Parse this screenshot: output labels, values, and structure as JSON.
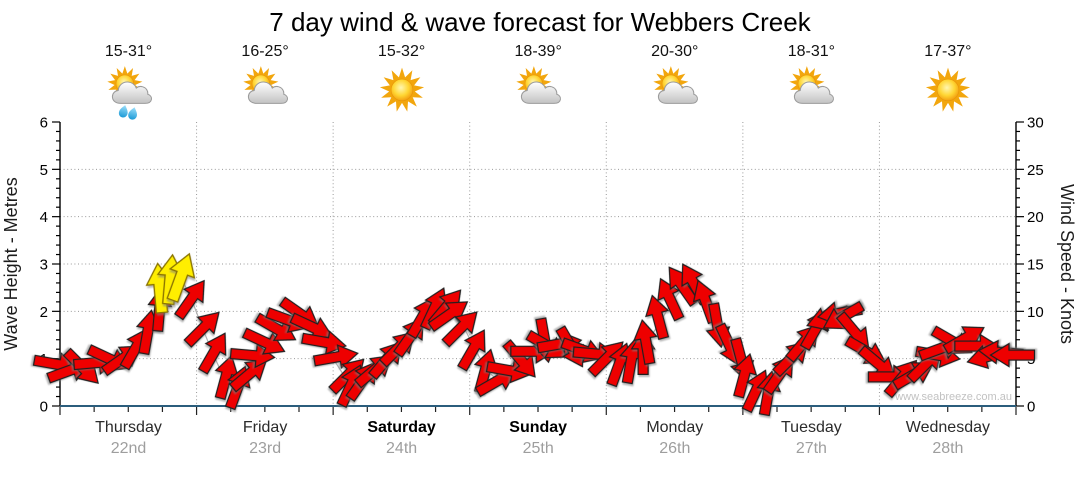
{
  "title": "7 day wind & wave forecast for Webbers Creek",
  "watermark": "www.seabreeze.com.au",
  "axes": {
    "left_label": "Wave Height - Metres",
    "right_label": "Wind Speed - Knots",
    "left_ticks": [
      0,
      1,
      2,
      3,
      4,
      5,
      6
    ],
    "right_ticks": [
      0,
      5,
      10,
      15,
      20,
      25,
      30
    ]
  },
  "days": [
    {
      "name": "Thursday",
      "date": "22nd",
      "temp": "15-31°",
      "icon": "sun-cloud-rain",
      "weekend": false
    },
    {
      "name": "Friday",
      "date": "23rd",
      "temp": "16-25°",
      "icon": "sun-cloud",
      "weekend": false
    },
    {
      "name": "Saturday",
      "date": "24th",
      "temp": "15-32°",
      "icon": "sun",
      "weekend": true
    },
    {
      "name": "Sunday",
      "date": "25th",
      "temp": "18-39°",
      "icon": "sun-cloud",
      "weekend": true
    },
    {
      "name": "Monday",
      "date": "26th",
      "temp": "20-30°",
      "icon": "sun-cloud",
      "weekend": false
    },
    {
      "name": "Tuesday",
      "date": "27th",
      "temp": "18-31°",
      "icon": "sun-cloud",
      "weekend": false
    },
    {
      "name": "Wednesday",
      "date": "28th",
      "temp": "17-37°",
      "icon": "sun",
      "weekend": false
    }
  ],
  "colors": {
    "arrow_red": "#ee0000",
    "arrow_red_stroke": "#1f1f1f",
    "arrow_yellow": "#ffee00",
    "arrow_yellow_stroke": "#8a7400",
    "gridline": "#9a9a9a",
    "axis": "#000000",
    "bottom_axis": "#2b5d7c",
    "trend_line": "#b0b0b0",
    "date_text": "#9e9e9e",
    "rain_drop": "#29a8e0",
    "sun": "#f2a60d",
    "cloud_edge": "#9b9b9b"
  },
  "chart_data": {
    "type": "line",
    "subtype": "wind-direction-arrows",
    "title": "7 day wind & wave forecast for Webbers Creek",
    "xlabel_days": [
      "Thursday 22nd",
      "Friday 23rd",
      "Saturday 24th",
      "Sunday 25th",
      "Monday 26th",
      "Tuesday 27th",
      "Wednesday 28th"
    ],
    "ylabel_left": "Wave Height - Metres",
    "ylabel_right": "Wind Speed - Knots",
    "ylim_left_metres": [
      0,
      6
    ],
    "ylim_right_knots": [
      0,
      30
    ],
    "grid": true,
    "point_format": "[day_position_0_to_7, wind_speed_knots, arrow_bearing_deg_0isNorthUp, color_0red_1yellow]",
    "arrow_points": [
      [
        0.0,
        4.0,
        100,
        0
      ],
      [
        0.09,
        3.4,
        70,
        0
      ],
      [
        0.18,
        3.8,
        135,
        0
      ],
      [
        0.27,
        4.4,
        85,
        0
      ],
      [
        0.36,
        4.9,
        115,
        0
      ],
      [
        0.45,
        5.0,
        55,
        0
      ],
      [
        0.54,
        6.2,
        30,
        0
      ],
      [
        0.62,
        8.0,
        10,
        0
      ],
      [
        0.7,
        10.5,
        5,
        0
      ],
      [
        0.76,
        12.8,
        355,
        1
      ],
      [
        0.83,
        13.8,
        5,
        1
      ],
      [
        0.9,
        13.2,
        20,
        1
      ],
      [
        0.97,
        11.0,
        35,
        0
      ],
      [
        1.05,
        8.0,
        45,
        0
      ],
      [
        1.12,
        5.5,
        30,
        0
      ],
      [
        1.2,
        3.0,
        15,
        0
      ],
      [
        1.28,
        2.0,
        20,
        0
      ],
      [
        1.36,
        3.5,
        50,
        0
      ],
      [
        1.44,
        5.5,
        95,
        0
      ],
      [
        1.52,
        7.0,
        115,
        0
      ],
      [
        1.6,
        8.5,
        120,
        0
      ],
      [
        1.68,
        9.5,
        110,
        0
      ],
      [
        1.76,
        9.3,
        125,
        0
      ],
      [
        1.84,
        8.0,
        115,
        0
      ],
      [
        1.92,
        6.5,
        100,
        0
      ],
      [
        2.0,
        5.0,
        80,
        0
      ],
      [
        2.08,
        3.2,
        45,
        0
      ],
      [
        2.16,
        2.2,
        25,
        0
      ],
      [
        2.24,
        2.8,
        35,
        0
      ],
      [
        2.32,
        4.0,
        50,
        0
      ],
      [
        2.4,
        5.2,
        40,
        0
      ],
      [
        2.48,
        6.5,
        45,
        0
      ],
      [
        2.56,
        7.8,
        35,
        0
      ],
      [
        2.64,
        9.0,
        30,
        0
      ],
      [
        2.72,
        10.0,
        25,
        0
      ],
      [
        2.8,
        10.2,
        40,
        0
      ],
      [
        2.88,
        9.5,
        55,
        0
      ],
      [
        2.96,
        8.2,
        45,
        0
      ],
      [
        3.04,
        6.0,
        30,
        0
      ],
      [
        3.12,
        3.8,
        15,
        0
      ],
      [
        3.2,
        2.8,
        60,
        0
      ],
      [
        3.28,
        4.0,
        100,
        0
      ],
      [
        3.36,
        5.2,
        140,
        0
      ],
      [
        3.44,
        6.2,
        90,
        0
      ],
      [
        3.52,
        6.5,
        170,
        0
      ],
      [
        3.6,
        6.0,
        120,
        0
      ],
      [
        3.68,
        6.3,
        80,
        0
      ],
      [
        3.76,
        6.0,
        150,
        0
      ],
      [
        3.84,
        5.8,
        110,
        0
      ],
      [
        3.92,
        5.5,
        95,
        0
      ],
      [
        4.0,
        5.2,
        45,
        0
      ],
      [
        4.08,
        4.6,
        20,
        0
      ],
      [
        4.16,
        5.0,
        10,
        0
      ],
      [
        4.24,
        6.0,
        0,
        0
      ],
      [
        4.32,
        7.2,
        350,
        0
      ],
      [
        4.4,
        9.0,
        345,
        0
      ],
      [
        4.48,
        11.0,
        335,
        0
      ],
      [
        4.56,
        12.5,
        325,
        0
      ],
      [
        4.64,
        12.8,
        330,
        0
      ],
      [
        4.72,
        11.0,
        340,
        0
      ],
      [
        4.8,
        8.5,
        170,
        0
      ],
      [
        4.88,
        6.5,
        155,
        0
      ],
      [
        4.96,
        5.0,
        165,
        0
      ],
      [
        5.04,
        3.5,
        15,
        0
      ],
      [
        5.12,
        2.0,
        25,
        0
      ],
      [
        5.2,
        1.8,
        10,
        0
      ],
      [
        5.28,
        3.0,
        35,
        0
      ],
      [
        5.36,
        4.8,
        45,
        0
      ],
      [
        5.44,
        6.5,
        40,
        0
      ],
      [
        5.52,
        8.0,
        30,
        0
      ],
      [
        5.6,
        9.2,
        250,
        0
      ],
      [
        5.68,
        9.8,
        260,
        0
      ],
      [
        5.76,
        9.5,
        240,
        0
      ],
      [
        5.84,
        8.0,
        140,
        0
      ],
      [
        5.92,
        6.0,
        120,
        0
      ],
      [
        6.0,
        4.8,
        130,
        0
      ],
      [
        6.08,
        3.5,
        90,
        0
      ],
      [
        6.16,
        2.6,
        40,
        0
      ],
      [
        6.24,
        3.0,
        60,
        0
      ],
      [
        6.32,
        4.2,
        45,
        0
      ],
      [
        6.4,
        5.2,
        100,
        0
      ],
      [
        6.48,
        6.0,
        70,
        0
      ],
      [
        6.56,
        6.8,
        120,
        0
      ],
      [
        6.64,
        7.2,
        60,
        0
      ],
      [
        6.72,
        6.5,
        90,
        0
      ],
      [
        6.8,
        5.5,
        255,
        0
      ],
      [
        6.88,
        6.0,
        275,
        0
      ],
      [
        6.96,
        5.8,
        270,
        0
      ]
    ]
  }
}
